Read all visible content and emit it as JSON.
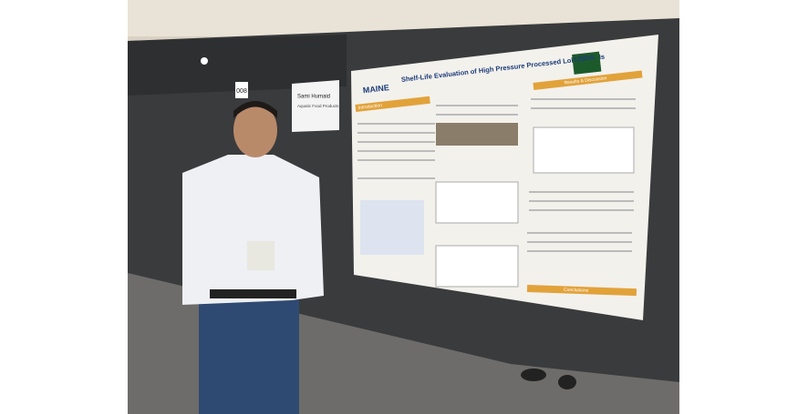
{
  "poster": {
    "title": "Shelf-Life Evaluation of High Pressure Processed Lobster Tails",
    "logo_left": "MAINE",
    "logo_right": "USDA",
    "sections": [
      "Introduction",
      "Results & Discussion",
      "Conclusions"
    ]
  },
  "name_card": {
    "number": "008",
    "name": "Sami Humaid",
    "affiliation": "Aquatic Food Products"
  }
}
